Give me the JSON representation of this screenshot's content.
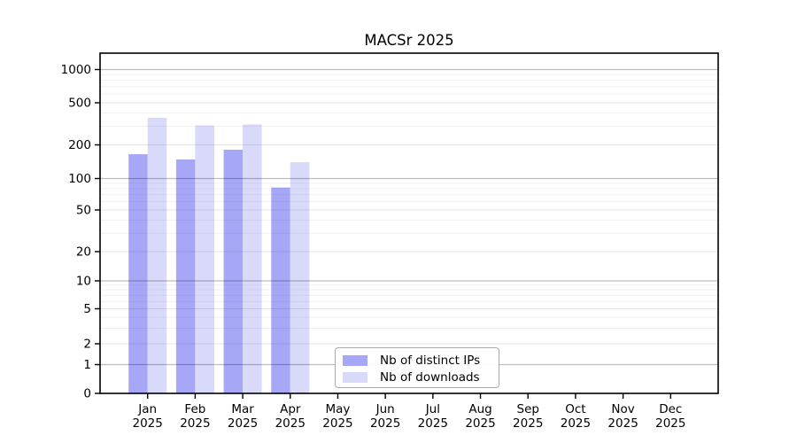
{
  "chart_data": {
    "type": "bar",
    "title": "MACSr 2025",
    "categories": [
      "Jan",
      "Feb",
      "Mar",
      "Apr",
      "May",
      "Jun",
      "Jul",
      "Aug",
      "Sep",
      "Oct",
      "Nov",
      "Dec"
    ],
    "category_year": "2025",
    "y_ticks": [
      0,
      1,
      2,
      5,
      10,
      20,
      50,
      100,
      200,
      500,
      1000
    ],
    "y_scale": "symlog",
    "ylim": [
      0,
      1500
    ],
    "grid": "both",
    "legend_position": "lower center",
    "series": [
      {
        "name": "Nb of distinct IPs",
        "color": "#a7a7f7",
        "values": [
          165,
          148,
          181,
          82,
          null,
          null,
          null,
          null,
          null,
          null,
          null,
          null
        ]
      },
      {
        "name": "Nb of downloads",
        "color": "#d9d9fa",
        "values": [
          360,
          305,
          312,
          140,
          null,
          null,
          null,
          null,
          null,
          null,
          null,
          null
        ]
      }
    ]
  }
}
